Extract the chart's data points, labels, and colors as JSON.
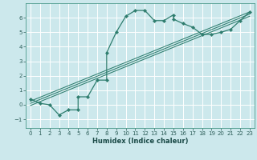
{
  "xlabel": "Humidex (Indice chaleur)",
  "bg_color": "#cce8ec",
  "grid_color": "#ffffff",
  "line_color": "#2e7d6e",
  "xlim": [
    -0.5,
    23.5
  ],
  "ylim": [
    -1.6,
    7.0
  ],
  "xticks": [
    0,
    1,
    2,
    3,
    4,
    5,
    6,
    7,
    8,
    9,
    10,
    11,
    12,
    13,
    14,
    15,
    16,
    17,
    18,
    19,
    20,
    21,
    22,
    23
  ],
  "yticks": [
    -1,
    0,
    1,
    2,
    3,
    4,
    5,
    6
  ],
  "scatter_x": [
    0,
    1,
    2,
    3,
    4,
    5,
    5,
    6,
    7,
    8,
    8,
    9,
    10,
    11,
    12,
    13,
    14,
    15,
    15,
    16,
    17,
    18,
    19,
    20,
    21,
    22,
    23
  ],
  "scatter_y": [
    0.4,
    0.1,
    0.0,
    -0.7,
    -0.35,
    -0.35,
    0.55,
    0.55,
    1.7,
    1.7,
    3.6,
    5.0,
    6.1,
    6.5,
    6.5,
    5.8,
    5.8,
    6.2,
    5.9,
    5.6,
    5.35,
    4.85,
    4.85,
    5.0,
    5.2,
    5.8,
    6.4
  ],
  "line1_x": [
    0,
    23
  ],
  "line1_y": [
    0.25,
    6.4
  ],
  "line2_x": [
    0,
    23
  ],
  "line2_y": [
    0.1,
    6.25
  ],
  "line3_x": [
    0,
    23
  ],
  "line3_y": [
    -0.05,
    6.1
  ]
}
